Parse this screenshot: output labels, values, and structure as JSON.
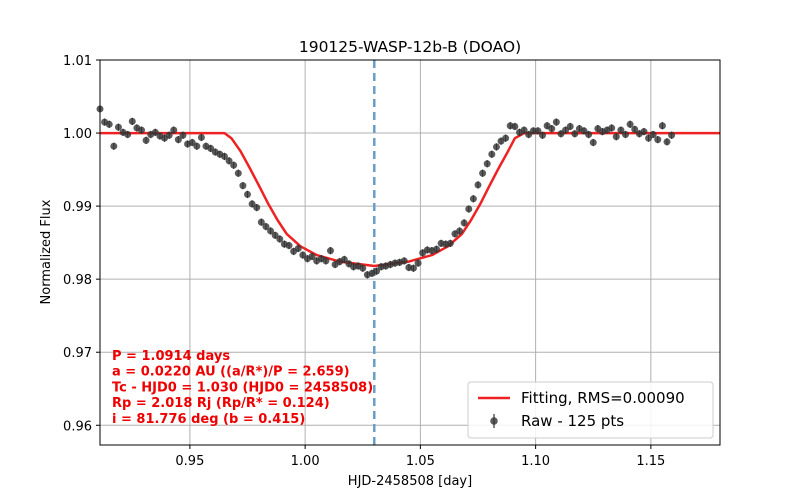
{
  "chart_data": {
    "type": "scatter",
    "title": "190125-WASP-12b-B (DOAO)",
    "xlabel": "HJD-2458508 [day]",
    "ylabel": "Normalized Flux",
    "xlim": [
      0.911,
      1.18
    ],
    "ylim": [
      0.9573,
      1.01
    ],
    "xticks": [
      0.95,
      1.0,
      1.05,
      1.1,
      1.15
    ],
    "xtick_labels": [
      "0.95",
      "1.00",
      "1.05",
      "1.10",
      "1.15"
    ],
    "yticks": [
      0.96,
      0.97,
      0.98,
      0.99,
      1.0,
      1.01
    ],
    "ytick_labels": [
      "0.96",
      "0.97",
      "0.98",
      "0.99",
      "1.00",
      "1.01"
    ],
    "grid": true,
    "legend_position": "lower-right",
    "colors": {
      "fit": "#ee2222",
      "raw": "#333333",
      "vline": "#6a9ec5",
      "annotation": "#ee0000"
    },
    "vline": {
      "x": 1.03,
      "style": "dashed"
    },
    "series": [
      {
        "name": "Fitting, RMS=0.00090",
        "kind": "line",
        "x": [
          0.911,
          0.965,
          0.968,
          0.972,
          0.976,
          0.98,
          0.984,
          0.988,
          0.992,
          0.998,
          1.005,
          1.015,
          1.03,
          1.045,
          1.055,
          1.062,
          1.068,
          1.072,
          1.076,
          1.08,
          1.084,
          1.088,
          1.091,
          1.095,
          1.18
        ],
        "y": [
          1.0,
          1.0,
          0.9993,
          0.9975,
          0.9952,
          0.9928,
          0.9903,
          0.9881,
          0.9862,
          0.9845,
          0.9833,
          0.9824,
          0.9818,
          0.9824,
          0.9833,
          0.9845,
          0.9862,
          0.9881,
          0.9903,
          0.9928,
          0.9952,
          0.9975,
          0.9993,
          1.0,
          1.0
        ]
      },
      {
        "name": "Raw - 125 pts",
        "kind": "errorbar",
        "yerr": 0.0005,
        "x": [
          0.911,
          0.913,
          0.915,
          0.917,
          0.919,
          0.921,
          0.923,
          0.925,
          0.927,
          0.929,
          0.931,
          0.933,
          0.935,
          0.937,
          0.939,
          0.941,
          0.943,
          0.945,
          0.947,
          0.949,
          0.951,
          0.953,
          0.955,
          0.957,
          0.959,
          0.961,
          0.963,
          0.965,
          0.967,
          0.969,
          0.971,
          0.973,
          0.975,
          0.977,
          0.979,
          0.981,
          0.983,
          0.985,
          0.987,
          0.989,
          0.991,
          0.993,
          0.995,
          0.997,
          0.999,
          1.001,
          1.003,
          1.005,
          1.007,
          1.009,
          1.011,
          1.013,
          1.015,
          1.017,
          1.019,
          1.021,
          1.023,
          1.025,
          1.027,
          1.029,
          1.031,
          1.033,
          1.035,
          1.037,
          1.039,
          1.041,
          1.043,
          1.045,
          1.047,
          1.049,
          1.051,
          1.053,
          1.055,
          1.057,
          1.059,
          1.061,
          1.063,
          1.065,
          1.067,
          1.069,
          1.071,
          1.073,
          1.075,
          1.077,
          1.079,
          1.081,
          1.083,
          1.085,
          1.087,
          1.089,
          1.091,
          1.093,
          1.095,
          1.097,
          1.099,
          1.101,
          1.103,
          1.105,
          1.107,
          1.109,
          1.111,
          1.113,
          1.115,
          1.117,
          1.119,
          1.121,
          1.123,
          1.125,
          1.127,
          1.129,
          1.131,
          1.133,
          1.135,
          1.137,
          1.139,
          1.141,
          1.143,
          1.145,
          1.147,
          1.149,
          1.151,
          1.153,
          1.155,
          1.157,
          1.159
        ],
        "y": [
          1.0033,
          1.0015,
          1.0012,
          0.9982,
          1.0008,
          1.0001,
          0.9998,
          1.0016,
          1.0007,
          1.0004,
          0.999,
          0.9998,
          1.0001,
          0.9996,
          0.9993,
          0.9997,
          1.0004,
          0.9991,
          0.9997,
          0.9985,
          0.9987,
          0.9982,
          0.9994,
          0.9982,
          0.9979,
          0.9974,
          0.9971,
          0.9968,
          0.9962,
          0.9956,
          0.9945,
          0.9928,
          0.9916,
          0.9903,
          0.9898,
          0.9878,
          0.9872,
          0.9866,
          0.986,
          0.9855,
          0.9848,
          0.9846,
          0.9838,
          0.9842,
          0.9833,
          0.9828,
          0.9831,
          0.9825,
          0.9828,
          0.9825,
          0.9839,
          0.982,
          0.9824,
          0.9827,
          0.9821,
          0.9817,
          0.9818,
          0.9815,
          0.9806,
          0.9808,
          0.9811,
          0.9817,
          0.9818,
          0.982,
          0.9822,
          0.9823,
          0.9825,
          0.9816,
          0.9815,
          0.9822,
          0.9836,
          0.984,
          0.9839,
          0.9841,
          0.9849,
          0.9848,
          0.9849,
          0.9862,
          0.9866,
          0.9877,
          0.9896,
          0.991,
          0.9929,
          0.9945,
          0.9958,
          0.9971,
          0.9981,
          0.9989,
          0.9993,
          1.001,
          1.0009,
          1.0001,
          1.0004,
          0.9998,
          1.0003,
          1.0003,
          0.9997,
          1.001,
          1.0006,
          1.0015,
          0.9999,
          1.0004,
          1.0009,
          0.9999,
          1.0006,
          1.0003,
          0.9998,
          0.9987,
          1.0006,
          1.0002,
          1.0004,
          1.0007,
          0.9995,
          1.0004,
          0.9998,
          1.0012,
          1.0005,
          0.9999,
          1.0002,
          0.9993,
          0.9998,
          0.9991,
          1.001,
          0.9988,
          0.9997
        ]
      }
    ],
    "annotations": [
      "P = 1.0914 days",
      "a = 0.0220 AU ((a/R*)/P = 2.659)",
      "Tc - HJD0 = 1.030 (HJD0 = 2458508)",
      "Rp = 2.018 Rj (Rp/R* = 0.124)",
      "i = 81.776 deg (b = 0.415)"
    ]
  }
}
